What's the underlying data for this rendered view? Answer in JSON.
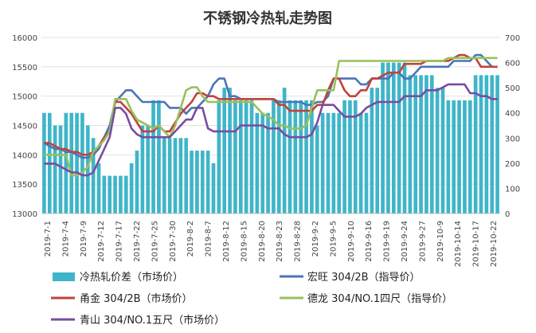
{
  "chart_data": {
    "type": "bar",
    "title": "不锈钢冷热轧走势图",
    "xlabel": "",
    "ylabel": "",
    "ylim": [
      13000,
      16000
    ],
    "y2lim": [
      0,
      700
    ],
    "yticks": [
      "13000",
      "13500",
      "14000",
      "14500",
      "15000",
      "15500",
      "16000"
    ],
    "y2ticks": [
      "0",
      "100",
      "200",
      "300",
      "400",
      "500",
      "600",
      "700"
    ],
    "xtick_labels": [
      "2019-7-1",
      "2019-7-4",
      "2019-7-9",
      "2019-7-12",
      "2019-7-17",
      "2019-7-22",
      "2019-7-25",
      "2019-7-30",
      "2019-8-2",
      "2019-8-7",
      "2019-8-12",
      "2019-8-15",
      "2019-8-20",
      "2019-8-23",
      "2019-8-28",
      "2019-9-2",
      "2019-9-5",
      "2019-9-10",
      "2019-9-16",
      "2019-9-19",
      "2019-9-24",
      "2019-9-27",
      "2019-10-9",
      "2019-10-14",
      "2019-10-17",
      "2019-10-22"
    ],
    "num_points": 84,
    "bar_series": {
      "name": "冷热轧价差（市场价）",
      "axis": "right",
      "color": "#3fb5c9",
      "values": [
        400,
        400,
        350,
        350,
        400,
        400,
        400,
        400,
        350,
        300,
        200,
        150,
        150,
        150,
        150,
        150,
        200,
        250,
        350,
        350,
        450,
        450,
        300,
        300,
        300,
        300,
        300,
        250,
        250,
        250,
        250,
        200,
        450,
        500,
        500,
        450,
        450,
        450,
        450,
        400,
        400,
        400,
        450,
        450,
        500,
        450,
        450,
        450,
        450,
        450,
        350,
        400,
        400,
        400,
        400,
        450,
        450,
        450,
        400,
        400,
        500,
        500,
        600,
        600,
        600,
        600,
        600,
        550,
        550,
        550,
        550,
        550,
        500,
        500,
        450,
        450,
        450,
        450,
        450,
        550,
        550,
        550,
        550,
        550
      ]
    },
    "line_series": [
      {
        "name": "宏旺 304/2B（指导价）",
        "axis": "left",
        "color": "#4a74b8",
        "values": [
          14200,
          14150,
          14100,
          14100,
          14050,
          14050,
          14000,
          13950,
          13950,
          14000,
          14100,
          14300,
          14500,
          14900,
          15000,
          15100,
          15100,
          15000,
          14900,
          14900,
          14900,
          14900,
          14900,
          14800,
          14800,
          14800,
          14700,
          14800,
          14800,
          14900,
          15000,
          15200,
          15300,
          15300,
          15000,
          15000,
          14950,
          14950,
          14950,
          14950,
          14950,
          14950,
          14950,
          14900,
          14900,
          14900,
          14900,
          14900,
          14850,
          14850,
          14900,
          14900,
          15000,
          15300,
          15300,
          15300,
          15300,
          15300,
          15200,
          15200,
          15300,
          15300,
          15300,
          15300,
          15400,
          15400,
          15300,
          15300,
          15400,
          15500,
          15500,
          15500,
          15500,
          15500,
          15500,
          15600,
          15600,
          15600,
          15600,
          15700,
          15700,
          15600,
          15500,
          15500
        ]
      },
      {
        "name": "甬金 304/2B（市场价）",
        "axis": "left",
        "color": "#c0433c",
        "values": [
          14200,
          14200,
          14150,
          14100,
          14100,
          14050,
          14050,
          14000,
          14000,
          14050,
          14150,
          14300,
          14400,
          14900,
          14900,
          14800,
          14700,
          14550,
          14400,
          14400,
          14400,
          14500,
          14400,
          14400,
          14550,
          14700,
          14800,
          14900,
          15050,
          15050,
          15000,
          15000,
          14950,
          14950,
          14950,
          14950,
          14950,
          14950,
          14950,
          14950,
          14950,
          14950,
          14950,
          14850,
          14850,
          14750,
          14750,
          14750,
          14750,
          14750,
          14850,
          14850,
          15100,
          15300,
          15300,
          15100,
          15000,
          15000,
          15100,
          15100,
          15300,
          15300,
          15350,
          15400,
          15400,
          15400,
          15550,
          15550,
          15550,
          15550,
          15600,
          15600,
          15600,
          15600,
          15600,
          15650,
          15700,
          15700,
          15650,
          15650,
          15500,
          15500,
          15500,
          15500
        ]
      },
      {
        "name": "德龙 304/NO.1四尺（指导价）",
        "axis": "left",
        "color": "#98c15a",
        "values": [
          14000,
          14000,
          14000,
          14000,
          14000,
          13650,
          13650,
          13700,
          13800,
          14050,
          14150,
          14250,
          14400,
          14950,
          14950,
          14950,
          14750,
          14600,
          14550,
          14500,
          14450,
          14500,
          14400,
          14300,
          14500,
          14800,
          15100,
          15150,
          15150,
          15000,
          14900,
          14900,
          14900,
          14900,
          14900,
          14900,
          14900,
          14900,
          14900,
          14800,
          14700,
          14650,
          14600,
          14500,
          14500,
          14450,
          14450,
          14450,
          14500,
          14800,
          15100,
          15100,
          15100,
          15100,
          15600,
          15600,
          15600,
          15600,
          15600,
          15600,
          15600,
          15600,
          15600,
          15600,
          15600,
          15600,
          15600,
          15600,
          15600,
          15600,
          15600,
          15600,
          15600,
          15600,
          15650,
          15650,
          15650,
          15650,
          15650,
          15650,
          15650,
          15650,
          15650,
          15650
        ]
      },
      {
        "name": "青山 304/NO.1五尺（市场价）",
        "axis": "left",
        "color": "#7b4b9f",
        "values": [
          13850,
          13850,
          13850,
          13800,
          13750,
          13700,
          13700,
          13650,
          13650,
          13700,
          13900,
          14100,
          14300,
          14800,
          14800,
          14700,
          14450,
          14350,
          14300,
          14300,
          14300,
          14300,
          14300,
          14300,
          14400,
          14500,
          14600,
          14600,
          14800,
          14800,
          14450,
          14400,
          14400,
          14400,
          14400,
          14400,
          14500,
          14500,
          14500,
          14500,
          14500,
          14450,
          14450,
          14450,
          14350,
          14300,
          14300,
          14300,
          14300,
          14350,
          14550,
          14850,
          14850,
          14850,
          14750,
          14650,
          14650,
          14650,
          14700,
          14800,
          14850,
          14900,
          14900,
          14900,
          14900,
          14900,
          15000,
          15000,
          15000,
          15000,
          15100,
          15100,
          15100,
          15150,
          15200,
          15200,
          15200,
          15200,
          15050,
          15050,
          15000,
          15000,
          14950,
          14950
        ]
      }
    ],
    "grid": true,
    "legend_position": "bottom"
  },
  "legend_labels": {
    "bar": "冷热轧价差（市场价）",
    "hongwang": "宏旺 304/2B（指导价）",
    "yongjin": "甬金 304/2B（市场价）",
    "delong": "德龙 304/NO.1四尺（指导价）",
    "qingshan": "青山 304/NO.1五尺（市场价）"
  }
}
